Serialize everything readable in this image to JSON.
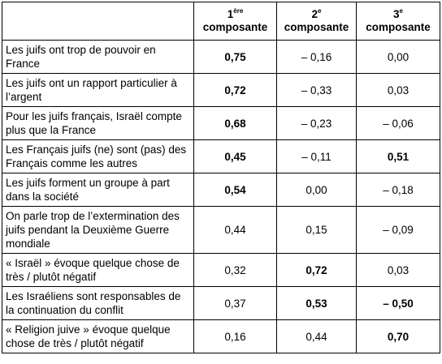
{
  "table": {
    "header": [
      {
        "num": "1",
        "sup": "ère",
        "word": "composante"
      },
      {
        "num": "2",
        "sup": "e",
        "word": "composante"
      },
      {
        "num": "3",
        "sup": "e",
        "word": "composante"
      }
    ],
    "rows": [
      {
        "label": "Les juifs ont trop de pouvoir en France",
        "cells": [
          "0,75",
          "– 0,16",
          "0,00"
        ],
        "bold": [
          0
        ]
      },
      {
        "label": "Les juifs ont un rapport particulier à l’argent",
        "cells": [
          "0,72",
          "– 0,33",
          "0,03"
        ],
        "bold": [
          0
        ]
      },
      {
        "label": "Pour les juifs français, Israël compte plus que la France",
        "cells": [
          "0,68",
          "– 0,23",
          "– 0,06"
        ],
        "bold": [
          0
        ]
      },
      {
        "label": "Les Français juifs (ne) sont (pas) des Français comme les autres",
        "cells": [
          "0,45",
          "– 0,11",
          "0,51"
        ],
        "bold": [
          0,
          2
        ]
      },
      {
        "label": "Les juifs forment un groupe à part dans la société",
        "cells": [
          "0,54",
          "0,00",
          "– 0,18"
        ],
        "bold": [
          0
        ]
      },
      {
        "label": "On parle trop de l’extermination des juifs pendant la Deuxième Guerre mondiale",
        "cells": [
          "0,44",
          "0,15",
          "– 0,09"
        ],
        "bold": []
      },
      {
        "label": "« Israël » évoque quelque chose de très / plutôt négatif",
        "cells": [
          "0,32",
          "0,72",
          "0,03"
        ],
        "bold": [
          1
        ]
      },
      {
        "label": "Les Israéliens sont responsables de la continuation du conflit",
        "cells": [
          "0,37",
          "0,53",
          "– 0,50"
        ],
        "bold": [
          1,
          2
        ]
      },
      {
        "label": "« Religion juive » évoque quelque chose de très / plutôt négatif",
        "cells": [
          "0,16",
          "0,44",
          "0,70"
        ],
        "bold": [
          2
        ]
      }
    ]
  }
}
